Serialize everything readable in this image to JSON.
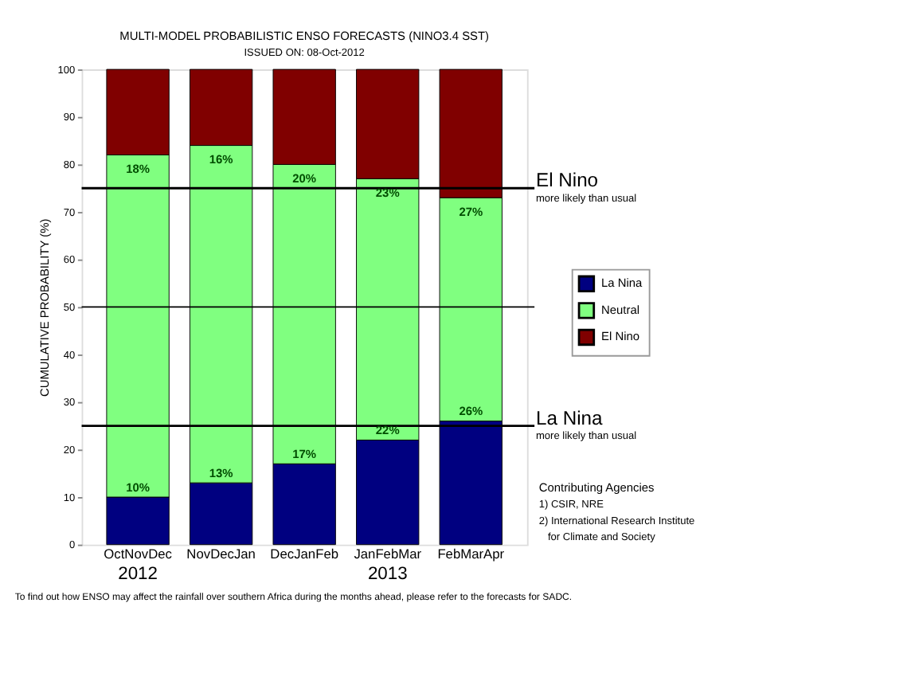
{
  "chart_data": {
    "type": "bar",
    "stacked": true,
    "title": "MULTI-MODEL PROBABILISTIC ENSO FORECASTS (NINO3.4 SST)",
    "subtitle": "ISSUED ON: 08-Oct-2012",
    "ylabel": "CUMULATIVE PROBABILITY (%)",
    "categories": [
      "OctNovDec",
      "NovDecJan",
      "DecJanFeb",
      "JanFebMar",
      "FebMarApr"
    ],
    "series": [
      {
        "name": "La Nina",
        "color": "#000080",
        "values": [
          10,
          13,
          17,
          22,
          26
        ],
        "value_labels": [
          "10%",
          "13%",
          "17%",
          "22%",
          "26%"
        ]
      },
      {
        "name": "Neutral",
        "color": "#80ff80",
        "values": [
          72,
          71,
          63,
          55,
          47
        ]
      },
      {
        "name": "El Nino",
        "color": "#800000",
        "values": [
          18,
          16,
          20,
          23,
          27
        ],
        "value_labels": [
          "18%",
          "16%",
          "20%",
          "23%",
          "27%"
        ]
      }
    ],
    "ylim": [
      0,
      100
    ],
    "yticks": [
      0,
      10,
      20,
      30,
      40,
      50,
      60,
      70,
      80,
      90,
      100
    ],
    "grid": false,
    "legend": "right",
    "ref_lines": [
      {
        "axis": "y",
        "value": 75,
        "label": "El Nino",
        "color": "#000000"
      },
      {
        "axis": "y",
        "value": 50,
        "color": "#000000"
      },
      {
        "axis": "y",
        "value": 25,
        "label": "La Nina",
        "color": "#000000"
      }
    ],
    "annotations": [
      "more likely than usual",
      "more likely than usual",
      "2012",
      "2013",
      "Contributing Agencies",
      "1) CSIR, NRE",
      "2) International Research Institute",
      "for Climate and Society",
      "To find out how ENSO may affect the rainfall over southern Africa during the months ahead, please refer to the forecasts for SADC."
    ]
  }
}
